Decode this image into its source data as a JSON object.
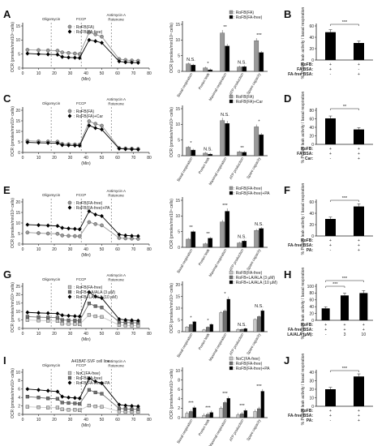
{
  "figure": {
    "panels": [
      {
        "id": "A",
        "type": "ocr",
        "top": 12,
        "inj": [
          "Oligomycin",
          "FCCP",
          "Antimycin A\nRotenone"
        ],
        "ymax": 15,
        "yticks": [
          0,
          5,
          10,
          15
        ],
        "legend": [
          "RoFB(FA)",
          "RoFB(FA-free)"
        ],
        "series": [
          {
            "color": "#9a9a9a",
            "marker": "circle",
            "values": [
              6.5,
              6.4,
              6.3,
              6.2,
              5.6,
              5.4,
              5.2,
              5.0,
              12.7,
              12.0,
              11.2,
              3.2,
              2.9,
              2.7,
              2.6
            ]
          },
          {
            "color": "#000000",
            "marker": "diamond",
            "values": [
              5.2,
              5.0,
              4.9,
              4.8,
              4.0,
              3.8,
              3.7,
              3.6,
              10.0,
              9.6,
              9.0,
              2.4,
              2.1,
              2.0,
              1.9
            ]
          }
        ]
      },
      {
        "id": "C",
        "type": "ocr",
        "top": 116,
        "inj": [
          "Oligomycin",
          "FCCP",
          "Antimycin A\nRotenone"
        ],
        "ymax": 20,
        "yticks": [
          0,
          5,
          10,
          15,
          20
        ],
        "legend": [
          "RoFB(FA)",
          "RoFB(FA)+Car"
        ],
        "series": [
          {
            "color": "#9a9a9a",
            "marker": "circle",
            "values": [
              5.5,
              5.3,
              5.2,
              5.1,
              4.0,
              3.9,
              3.8,
              3.7,
              14.8,
              13.6,
              12.7,
              2.1,
              1.9,
              1.8,
              1.7
            ]
          },
          {
            "color": "#000000",
            "marker": "diamond",
            "values": [
              4.8,
              4.6,
              4.5,
              4.4,
              3.5,
              3.4,
              3.3,
              3.2,
              12.8,
              11.6,
              10.9,
              1.8,
              1.6,
              1.5,
              1.4
            ]
          }
        ]
      },
      {
        "id": "E",
        "type": "ocr",
        "top": 229,
        "inj": [
          "Oligomycin",
          "FCCP",
          "Antimycin A\nRotenone"
        ],
        "ymax": 20,
        "yticks": [
          0,
          5,
          10,
          15,
          20
        ],
        "legend": [
          "RoFB(FA-free)",
          "RoFB(FA-free)+PA"
        ],
        "series": [
          {
            "color": "#9a9a9a",
            "marker": "circle",
            "values": [
              5.5,
              5.2,
              5.0,
              4.9,
              4.1,
              3.9,
              3.8,
              3.7,
              10.4,
              9.5,
              8.9,
              2.9,
              2.7,
              2.6,
              2.5
            ]
          },
          {
            "color": "#000000",
            "marker": "diamond",
            "values": [
              9.2,
              9.0,
              8.8,
              8.6,
              7.7,
              7.4,
              7.2,
              7.0,
              15.6,
              14.0,
              13.3,
              4.5,
              4.1,
              3.9,
              3.8
            ]
          }
        ]
      },
      {
        "id": "G",
        "type": "ocr",
        "top": 333,
        "inj": [
          "Oligomycin",
          "FCCP",
          "Antimycin A\nRotenone"
        ],
        "ymax": 25,
        "yticks": [
          0,
          5,
          10,
          15,
          20,
          25
        ],
        "legend": [
          "RoFB(FA-free)",
          "RoFB+LA/ALA (3 μM)",
          "RoFB+LA/ALA (10 μM)"
        ],
        "series": [
          {
            "color": "#c8c8c8",
            "marker": "square",
            "values": [
              5.0,
              4.7,
              4.5,
              4.4,
              2.8,
              2.7,
              2.6,
              2.5,
              8.0,
              7.2,
              6.8,
              2.0,
              1.8,
              1.7,
              1.6
            ]
          },
          {
            "color": "#707070",
            "marker": "square",
            "values": [
              7.0,
              6.7,
              6.5,
              6.4,
              5.0,
              4.8,
              4.7,
              4.6,
              14.8,
              13.2,
              12.4,
              3.8,
              3.5,
              3.4,
              3.3
            ]
          },
          {
            "color": "#000000",
            "marker": "diamond",
            "values": [
              9.5,
              9.2,
              9.0,
              8.8,
              7.8,
              7.5,
              7.3,
              7.1,
              21.5,
              19.0,
              18.0,
              5.5,
              5.0,
              4.8,
              4.6
            ]
          }
        ]
      },
      {
        "id": "I",
        "type": "ocr",
        "top": 439,
        "title": "A41BAT-SVF cell line",
        "inj": [
          "Oligomycin",
          "FCCP",
          "Antimycin A\nRotenone"
        ],
        "ymax": 10,
        "yticks": [
          0,
          2,
          4,
          6,
          8,
          10
        ],
        "legend": [
          "NoC(FA-free)",
          "RoFB(FA-free)",
          "RoFB(FA-free)+PA"
        ],
        "series": [
          {
            "color": "#c8c8c8",
            "marker": "square",
            "values": [
              1.8,
              1.7,
              1.6,
              1.6,
              1.2,
              1.1,
              1.1,
              1.0,
              2.1,
              1.9,
              1.8,
              0.7,
              0.6,
              0.6,
              0.6
            ]
          },
          {
            "color": "#707070",
            "marker": "square",
            "values": [
              4.2,
              4.0,
              3.8,
              3.7,
              2.8,
              2.7,
              2.6,
              2.5,
              5.8,
              5.2,
              4.9,
              1.4,
              1.3,
              1.2,
              1.2
            ]
          },
          {
            "color": "#000000",
            "marker": "diamond",
            "values": [
              6.0,
              5.8,
              5.6,
              5.4,
              4.2,
              4.0,
              3.9,
              3.8,
              8.5,
              7.8,
              7.4,
              2.3,
              2.1,
              2.0,
              1.9
            ]
          }
        ]
      }
    ],
    "bars": [
      {
        "top": 12,
        "ymax": 15,
        "yticks": [
          0,
          5,
          10,
          15
        ],
        "legend": [
          "RoFB(FA)",
          "RoFB(FA-free)"
        ],
        "colors": [
          "#9a9a9a",
          "#000000"
        ],
        "cats": [
          "Basal respiration",
          "Proton leak",
          "Maximal respiration",
          "ATP production",
          "Spare capacity"
        ],
        "values": [
          [
            2.4,
            2.0
          ],
          [
            1.1,
            0.5
          ],
          [
            12.2,
            8.1
          ],
          [
            1.4,
            1.5
          ],
          [
            9.8,
            6.0
          ]
        ],
        "sig": [
          "N.S.",
          "*",
          "**",
          "N.S.",
          "***"
        ]
      },
      {
        "top": 116,
        "ymax": 15,
        "yticks": [
          0,
          5,
          10,
          15
        ],
        "legend": [
          "RoFB(FA)",
          "RoFB(FA)+Car"
        ],
        "colors": [
          "#9a9a9a",
          "#000000"
        ],
        "cats": [
          "Basal respiration",
          "Proton leak",
          "Maximal respiration",
          "ATP production",
          "Spare capacity"
        ],
        "values": [
          [
            2.7,
            1.8
          ],
          [
            0.8,
            0.5
          ],
          [
            11.2,
            10.3
          ],
          [
            1.2,
            1.1
          ],
          [
            9.2,
            6.7
          ]
        ],
        "sig": [
          "*",
          "N.S.",
          "N.S.",
          "**",
          "*"
        ]
      },
      {
        "top": 229,
        "ymax": 15,
        "yticks": [
          0,
          5,
          10,
          15
        ],
        "legend": [
          "RoFB(FA-free)",
          "RoFB(FA-free)+PA"
        ],
        "colors": [
          "#9a9a9a",
          "#000000"
        ],
        "cats": [
          "Basal respiration",
          "Proton leak",
          "Maximal respiration",
          "ATP production",
          "Spare capacity"
        ],
        "values": [
          [
            2.6,
            5.0
          ],
          [
            1.1,
            2.9
          ],
          [
            8.1,
            11.5
          ],
          [
            1.4,
            2.0
          ],
          [
            5.4,
            6.0
          ]
        ],
        "sig": [
          "**",
          "**",
          "***",
          "N.S.",
          "N.S."
        ]
      },
      {
        "top": 333,
        "ymax": 20,
        "yticks": [
          0,
          5,
          10,
          15,
          20
        ],
        "legend": [
          "RoFB(FA-free)",
          "RoFB+LA/ALA (3 μM)",
          "RoFB+LA/ALA (10 μM)"
        ],
        "colors": [
          "#c8c8c8",
          "#707070",
          "#000000"
        ],
        "cats": [
          "Basal respiration",
          "Proton leak",
          "Maximal respiration",
          "ATP production",
          "Spare capacity"
        ],
        "values": [
          [
            2.0,
            3.0,
            4.2
          ],
          [
            0.8,
            1.9,
            3.1
          ],
          [
            8.1,
            8.8,
            13.8
          ],
          [
            1.0,
            1.0,
            1.3
          ],
          [
            5.2,
            6.4,
            8.9
          ]
        ],
        "sig": [
          "*",
          "*",
          "*",
          "N.S.",
          "N.S."
        ]
      },
      {
        "top": 439,
        "ymax": 10,
        "yticks": [
          0,
          2,
          4,
          6,
          8,
          10
        ],
        "legend": [
          "NoC(FA-free)",
          "RoFB(FA-free)",
          "RoFB(FA-free)+PA"
        ],
        "colors": [
          "#c8c8c8",
          "#707070",
          "#000000"
        ],
        "cats": [
          "Basal respiration",
          "Proton leak",
          "Maximal respiration",
          "ATP production",
          "Spare capacity"
        ],
        "values": [
          [
            0.9,
            1.3,
            2.1
          ],
          [
            0.5,
            0.7,
            1.1
          ],
          [
            2.0,
            3.2,
            4.1
          ],
          [
            0.6,
            0.8,
            1.5
          ],
          [
            1.3,
            1.9,
            5.6
          ]
        ],
        "sig": [
          "***",
          "***",
          "***",
          "***",
          "***"
        ]
      }
    ],
    "proton": [
      {
        "letter": "B",
        "top": 12,
        "ymax": 60,
        "yticks": [
          0,
          20,
          40,
          60
        ],
        "values": [
          49,
          30
        ],
        "colors": [
          "#000000",
          "#000000"
        ],
        "rows": [
          [
            "RoFB:",
            "+",
            "+"
          ],
          [
            "FA BSA:",
            "+",
            "-"
          ],
          [
            "FA-free BSA:",
            "-",
            "+"
          ]
        ],
        "sig": [
          "***"
        ]
      },
      {
        "letter": "D",
        "top": 116,
        "ymax": 80,
        "yticks": [
          0,
          20,
          40,
          60,
          80
        ],
        "values": [
          61,
          35
        ],
        "colors": [
          "#000000",
          "#000000"
        ],
        "rows": [
          [
            "RoFB:",
            "+",
            "+"
          ],
          [
            "FA BSA:",
            "+",
            "+"
          ],
          [
            "Car:",
            "-",
            "+"
          ]
        ],
        "sig": [
          "**"
        ]
      },
      {
        "letter": "F",
        "top": 229,
        "ymax": 60,
        "yticks": [
          0,
          20,
          40,
          60
        ],
        "values": [
          30,
          52
        ],
        "colors": [
          "#000000",
          "#000000"
        ],
        "rows": [
          [
            "RoFB:",
            "+",
            "+"
          ],
          [
            "FA-free BSA:",
            "+",
            "+"
          ],
          [
            "PA:",
            "-",
            "+"
          ]
        ],
        "sig": [
          "***"
        ]
      },
      {
        "letter": "H",
        "top": 333,
        "ymax": 100,
        "yticks": [
          0,
          20,
          40,
          60,
          80,
          100
        ],
        "values": [
          35,
          73,
          80
        ],
        "colors": [
          "#000000",
          "#000000",
          "#000000"
        ],
        "rows": [
          [
            "RoFB:",
            "+",
            "+",
            "+"
          ],
          [
            "FA-free BSA:",
            "+",
            "+",
            "+"
          ],
          [
            "LA/ALA (μM):",
            "-",
            "3",
            "10"
          ]
        ],
        "sig": [
          "***",
          "***"
        ]
      },
      {
        "letter": "J",
        "top": 439,
        "ymax": 40,
        "yticks": [
          0,
          10,
          20,
          30,
          40
        ],
        "values": [
          20,
          35
        ],
        "colors": [
          "#000000",
          "#000000"
        ],
        "rows": [
          [
            "RoFB:",
            "+",
            "+"
          ],
          [
            "FA-free BSA:",
            "+",
            "+"
          ],
          [
            "PA:",
            "-",
            "+"
          ]
        ],
        "sig": [
          "***"
        ]
      }
    ],
    "text": {
      "ocr_ylabel": "OCR (pmoles/min/10⁴ cells)",
      "xlabel": "(Min)",
      "xticks": [
        "0",
        "10",
        "20",
        "30",
        "40",
        "50",
        "60",
        "70",
        "80"
      ],
      "proton_ylabel": "% Proton leak activity / basal respiration"
    }
  }
}
